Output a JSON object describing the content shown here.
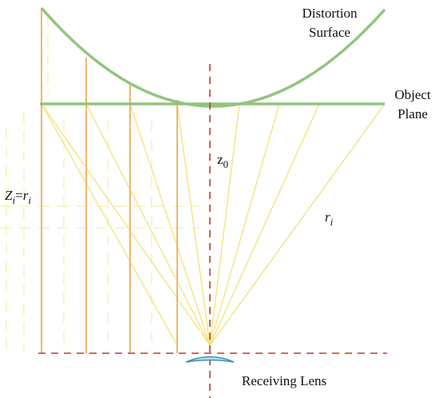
{
  "labels": {
    "distortion_surface": [
      "Distortion",
      "Surface"
    ],
    "object_plane": [
      "Object",
      "Plane"
    ],
    "z0": [
      "z",
      "0"
    ],
    "zi_ri": [
      "Z",
      "i",
      "=",
      "r",
      "i"
    ],
    "ri": [
      "r",
      "i"
    ],
    "receiving_lens": "Receiving Lens"
  }
}
